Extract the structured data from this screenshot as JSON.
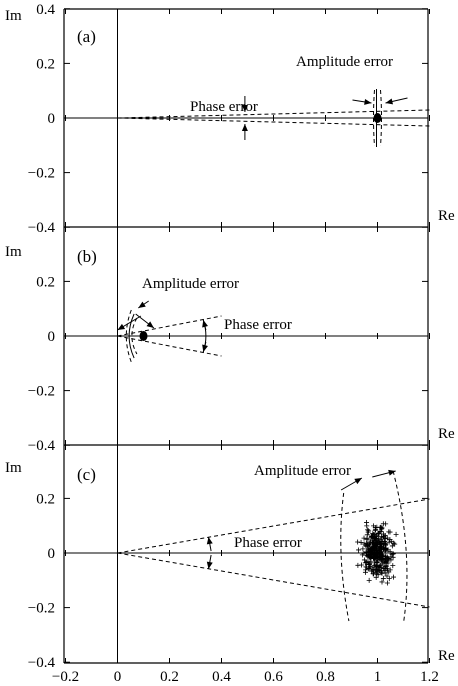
{
  "chart_data": [
    {
      "type": "scatter",
      "panel_label": "(a)",
      "xlabel": "Re",
      "ylabel": "Im",
      "xlim": [
        -0.2,
        1.2
      ],
      "ylim": [
        -0.4,
        0.4
      ],
      "yticks": [
        "0.4",
        "0.2",
        "0",
        "−0.2",
        "−0.4"
      ],
      "grid": false,
      "points": [
        {
          "x": 1.0,
          "y": 0.0
        }
      ],
      "annotations": [
        "Phase error",
        "Amplitude error"
      ]
    },
    {
      "type": "scatter",
      "panel_label": "(b)",
      "xlabel": "Re",
      "ylabel": "Im",
      "xlim": [
        -0.2,
        1.2
      ],
      "ylim": [
        -0.4,
        0.4
      ],
      "yticks": [
        "0.2",
        "0",
        "−0.2",
        "−0.4"
      ],
      "grid": false,
      "points": [
        {
          "x": 0.1,
          "y": 0.0
        }
      ],
      "annotations": [
        "Amplitude error",
        "Phase error"
      ]
    },
    {
      "type": "scatter",
      "panel_label": "(c)",
      "xlabel": "Re",
      "ylabel": "Im",
      "xlim": [
        -0.2,
        1.2
      ],
      "ylim": [
        -0.4,
        0.4
      ],
      "xticks": [
        "−0.2",
        "0",
        "0.2",
        "0.4",
        "0.6",
        "0.8",
        "1",
        "1.2"
      ],
      "yticks": [
        "0.2",
        "0",
        "−0.2",
        "−0.4"
      ],
      "grid": false,
      "marker": "+",
      "cloud": {
        "center": [
          1.0,
          0.0
        ],
        "x_range": [
          0.89,
          1.1
        ],
        "y_range": [
          -0.18,
          0.14
        ],
        "count": 320
      },
      "annotations": [
        "Amplitude error",
        "Phase error"
      ]
    }
  ]
}
